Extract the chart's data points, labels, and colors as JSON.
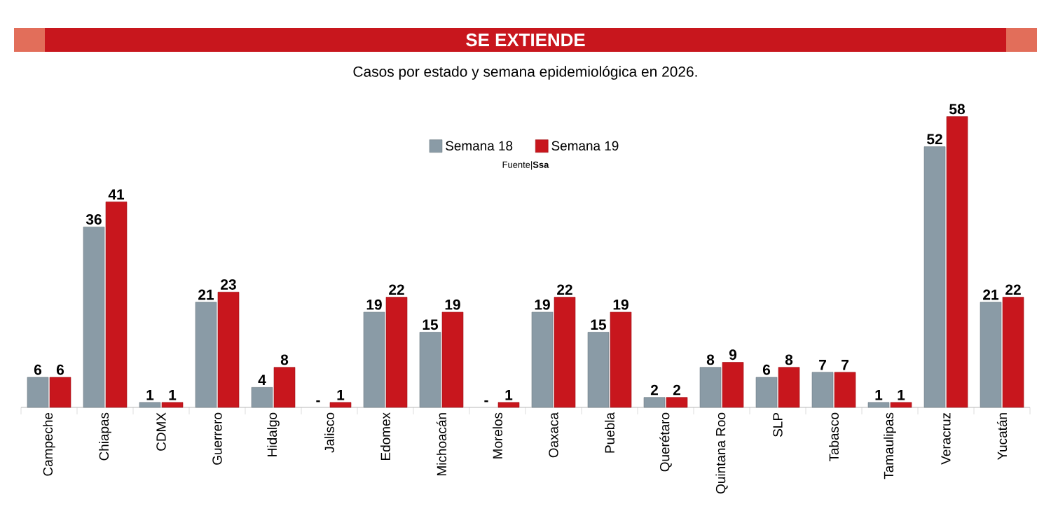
{
  "chart_data": {
    "type": "bar",
    "title": "SE EXTIENDE",
    "subtitle": "Casos por estado y semana epidemiológica en 2026.",
    "annotations": [
      "Fuente|**Ssa**"
    ],
    "categories": [
      "Campeche",
      "Chiapas",
      "CDMX",
      "Guerrero",
      "Hidalgo",
      "Jalisco",
      "Edomex",
      "Michoacán",
      "Morelos",
      "Oaxaca",
      "Puebla",
      "Querétaro",
      "Quintana Roo",
      "SLP",
      "Tabasco",
      "Tamaulipas",
      "Veracruz",
      "Yucatán"
    ],
    "series": [
      {
        "name": "Semana 18",
        "color": "#8a9ba6",
        "values": [
          6,
          36,
          1,
          21,
          4,
          null,
          19,
          15,
          null,
          19,
          15,
          2,
          8,
          6,
          7,
          1,
          52,
          21
        ],
        "value_labels": [
          "6",
          "36",
          "1",
          "21",
          "4",
          "-",
          "19",
          "15",
          "-",
          "19",
          "15",
          "2",
          "8",
          "6",
          "7",
          "1",
          "52",
          "21"
        ]
      },
      {
        "name": "Semana 19",
        "color": "#c8161d",
        "values": [
          6,
          41,
          1,
          23,
          8,
          1,
          22,
          19,
          1,
          22,
          19,
          2,
          9,
          8,
          7,
          1,
          58,
          22
        ],
        "value_labels": [
          "6",
          "41",
          "1",
          "23",
          "8",
          "1",
          "22",
          "19",
          "1",
          "22",
          "19",
          "2",
          "9",
          "8",
          "7",
          "1",
          "58",
          "22"
        ]
      }
    ],
    "legend": "top"
  }
}
